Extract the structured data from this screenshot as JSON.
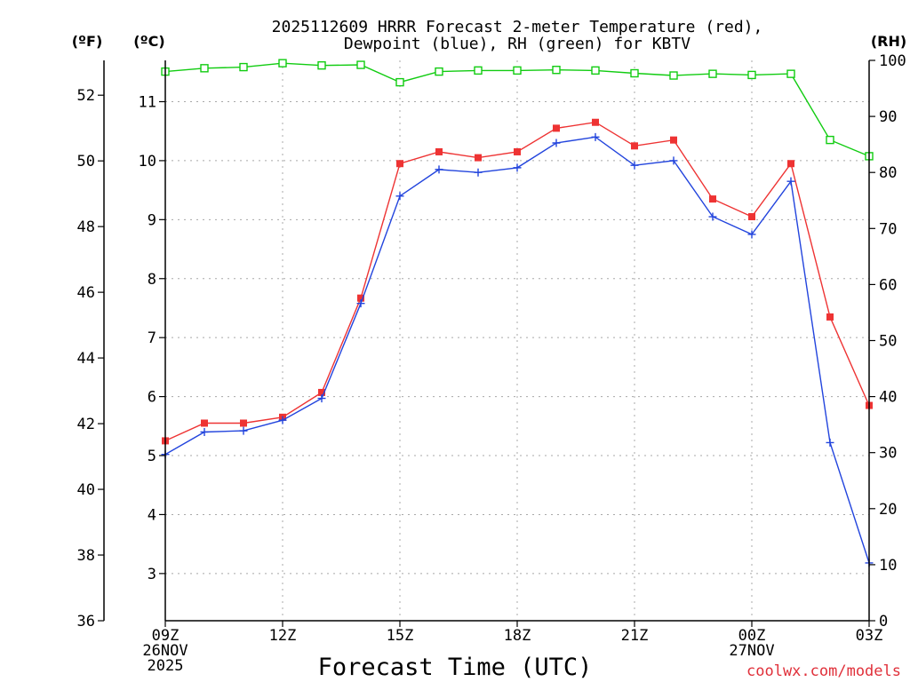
{
  "chart_data": {
    "type": "line",
    "title_line1": "2025112609 HRRR Forecast 2-meter Temperature (red),",
    "title_line2": "Dewpoint (blue), RH (green) for KBTV",
    "xlabel": "Forecast Time (UTC)",
    "credit": "coolwx.com/models",
    "axis_labels": {
      "fahrenheit": "(ºF)",
      "celsius": "(ºC)",
      "rh": "(RH)"
    },
    "celsius_axis": {
      "range": [
        2.2,
        11.7
      ],
      "ticks": [
        3,
        4,
        5,
        6,
        7,
        8,
        9,
        10,
        11
      ]
    },
    "fahrenheit_axis": {
      "range": [
        36,
        53.06
      ],
      "ticks": [
        36,
        38,
        40,
        42,
        44,
        46,
        48,
        50,
        52
      ]
    },
    "rh_axis": {
      "range": [
        0,
        100
      ],
      "ticks": [
        0,
        10,
        20,
        30,
        40,
        50,
        60,
        70,
        80,
        90,
        100
      ]
    },
    "x_axis": {
      "range": [
        0,
        18
      ],
      "ticks": [
        {
          "x": 0,
          "lines": [
            "09Z",
            "26NOV",
            "2025"
          ]
        },
        {
          "x": 3,
          "lines": [
            "12Z"
          ]
        },
        {
          "x": 6,
          "lines": [
            "15Z"
          ]
        },
        {
          "x": 9,
          "lines": [
            "18Z"
          ]
        },
        {
          "x": 12,
          "lines": [
            "21Z"
          ]
        },
        {
          "x": 15,
          "lines": [
            "00Z",
            "27NOV"
          ]
        },
        {
          "x": 18,
          "lines": [
            "03Z"
          ]
        }
      ]
    },
    "series": [
      {
        "name": "Temperature",
        "unit": "celsius",
        "color": "#ee3333",
        "marker": "filled-square",
        "x": [
          0,
          1,
          2,
          3,
          4,
          5,
          6,
          7,
          8,
          9,
          10,
          11,
          12,
          13,
          14,
          15,
          16,
          17,
          18
        ],
        "values": [
          5.25,
          5.55,
          5.55,
          5.65,
          6.07,
          7.67,
          9.95,
          10.15,
          10.05,
          10.15,
          10.55,
          10.65,
          10.25,
          10.35,
          9.35,
          9.05,
          9.95,
          7.35,
          5.85
        ]
      },
      {
        "name": "Dewpoint",
        "unit": "celsius",
        "color": "#2244dd",
        "marker": "plus",
        "x": [
          0,
          1,
          2,
          3,
          4,
          5,
          6,
          7,
          8,
          9,
          10,
          11,
          12,
          13,
          14,
          15,
          16,
          17,
          18
        ],
        "values": [
          5.02,
          5.4,
          5.42,
          5.6,
          5.97,
          7.58,
          9.4,
          9.85,
          9.8,
          9.88,
          10.3,
          10.4,
          9.92,
          10.0,
          9.05,
          8.75,
          9.65,
          5.22,
          3.18
        ]
      },
      {
        "name": "RH",
        "unit": "rh",
        "color": "#11cc11",
        "marker": "open-square",
        "x": [
          0,
          1,
          2,
          3,
          4,
          5,
          6,
          7,
          8,
          9,
          10,
          11,
          12,
          13,
          14,
          15,
          16,
          17,
          18
        ],
        "values": [
          98,
          98.6,
          98.8,
          99.5,
          99.1,
          99.2,
          96.1,
          98,
          98.2,
          98.2,
          98.3,
          98.2,
          97.7,
          97.3,
          97.6,
          97.4,
          97.6,
          85.8,
          82.9
        ]
      }
    ]
  }
}
